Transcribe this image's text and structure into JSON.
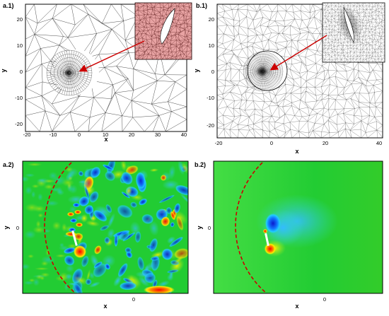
{
  "panels": [
    {
      "id": "a1",
      "label": "a.1)",
      "xlabel": "x",
      "ylabel": "y",
      "xticks": [
        "-20",
        "-10",
        "0",
        "10",
        "20",
        "30",
        "40"
      ],
      "yticks": [
        "20",
        "10",
        "0",
        "-10",
        "-20"
      ]
    },
    {
      "id": "b1",
      "label": "b.1)",
      "xlabel": "x",
      "ylabel": "y",
      "xticks": [
        "-20",
        "0",
        "20",
        "40"
      ],
      "yticks": [
        "20",
        "10",
        "0",
        "-10",
        "-20"
      ]
    },
    {
      "id": "a2",
      "label": "a.2)",
      "xlabel": "x",
      "ylabel": "y",
      "xticks": [
        "0"
      ],
      "yticks": [
        "0"
      ]
    },
    {
      "id": "b2",
      "label": "b.2)",
      "xlabel": "x",
      "ylabel": "y",
      "xticks": [
        "0"
      ],
      "yticks": [
        "0"
      ]
    }
  ],
  "colors": {
    "mesh_line": "#1a1a1a",
    "inset_mesh_fill": "#e8a3a3",
    "arrow": "#cc0000",
    "field_background": "#22cc33",
    "dashed_circle": "#cc0000",
    "vortex_blue": "#1144cc",
    "vortex_red": "#ee1111"
  }
}
